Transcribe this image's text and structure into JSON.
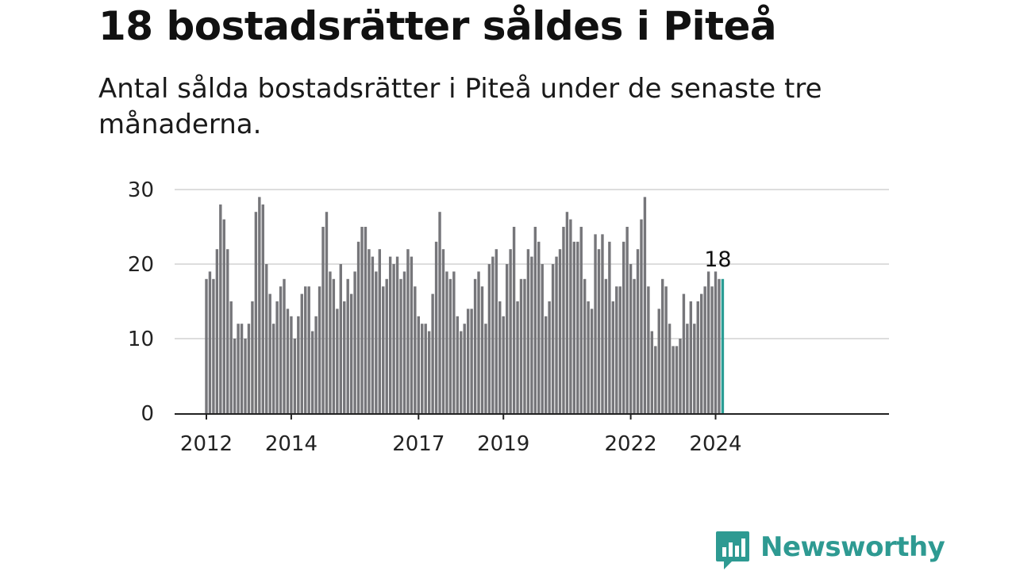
{
  "title": "18 bostadsrätter såldes i Piteå",
  "subtitle": "Antal sålda bostadsrätter i Piteå under de senaste tre månaderna.",
  "brand": {
    "name": "Newsworthy",
    "color": "#2e9a92",
    "icon": "bar-chart-speech-bubble-icon"
  },
  "colors": {
    "bar": "#76767a",
    "highlight": "#2a9d95",
    "grid": "#dddddd",
    "axis": "#222222"
  },
  "chart_data": {
    "type": "bar",
    "title": "18 bostadsrätter såldes i Piteå",
    "xlabel": "",
    "ylabel": "",
    "ylim": [
      0,
      30
    ],
    "yticks": [
      "0",
      "10",
      "20",
      "30"
    ],
    "start": "2012-01",
    "xticks": [
      {
        "label": "2012",
        "index": 0
      },
      {
        "label": "2014",
        "index": 24
      },
      {
        "label": "2017",
        "index": 60
      },
      {
        "label": "2019",
        "index": 84
      },
      {
        "label": "2022",
        "index": 120
      },
      {
        "label": "2024",
        "index": 144
      }
    ],
    "values": [
      18,
      19,
      18,
      22,
      28,
      26,
      22,
      15,
      10,
      12,
      12,
      10,
      12,
      15,
      27,
      29,
      28,
      20,
      16,
      12,
      15,
      17,
      18,
      14,
      13,
      10,
      13,
      16,
      17,
      17,
      11,
      13,
      17,
      25,
      27,
      19,
      18,
      14,
      20,
      15,
      18,
      16,
      19,
      23,
      25,
      25,
      22,
      21,
      19,
      22,
      17,
      18,
      21,
      20,
      21,
      18,
      19,
      22,
      21,
      17,
      13,
      12,
      12,
      11,
      16,
      23,
      27,
      22,
      19,
      18,
      19,
      13,
      11,
      12,
      14,
      14,
      18,
      19,
      17,
      12,
      20,
      21,
      22,
      15,
      13,
      20,
      22,
      25,
      15,
      18,
      18,
      22,
      21,
      25,
      23,
      20,
      13,
      15,
      20,
      21,
      22,
      25,
      27,
      26,
      23,
      23,
      25,
      18,
      15,
      14,
      24,
      22,
      24,
      18,
      23,
      15,
      17,
      17,
      23,
      25,
      20,
      18,
      22,
      26,
      29,
      17,
      11,
      9,
      14,
      18,
      17,
      12,
      9,
      9,
      10,
      16,
      12,
      15,
      12,
      15,
      16,
      17,
      19,
      17,
      19,
      18,
      18
    ],
    "highlight_index": 146,
    "annotation": {
      "label": "18",
      "index": 146
    }
  }
}
